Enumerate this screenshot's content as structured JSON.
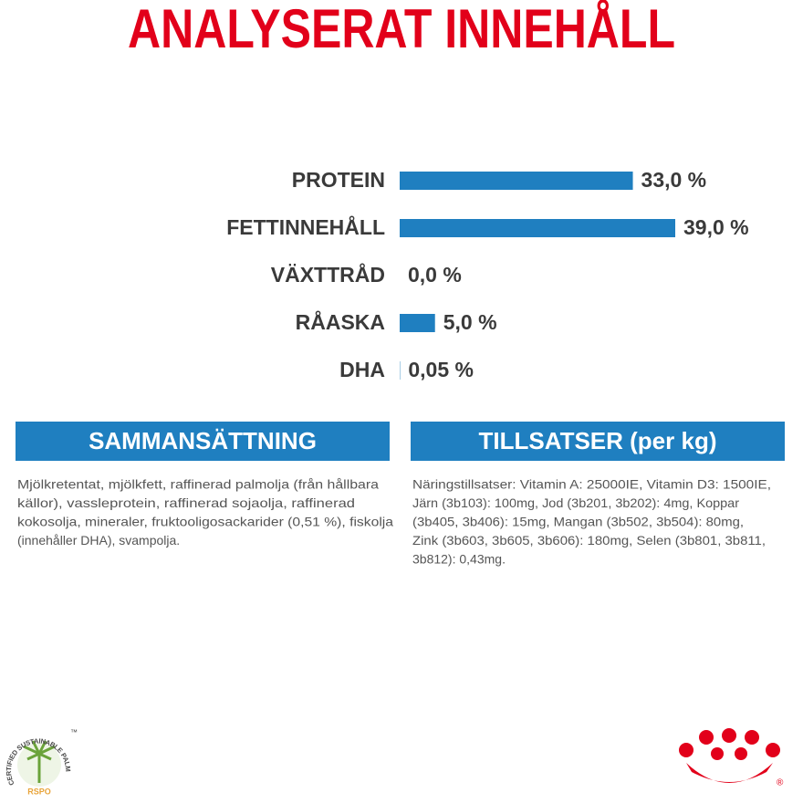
{
  "chart_data": {
    "type": "bar",
    "orientation": "horizontal",
    "title": "ANALYSERAT INNEHÅLL",
    "categories": [
      "PROTEIN",
      "FETTINNEHÅLL",
      "VÄXTTRÅD",
      "RÅASKA",
      "DHA"
    ],
    "values": [
      33.0,
      39.0,
      0.0,
      5.0,
      0.05
    ],
    "value_labels": [
      "33,0 %",
      "39,0 %",
      "0,0 %",
      "5,0 %",
      "0,05 %"
    ],
    "color": "#1f7fc0"
  },
  "sections": [
    {
      "title": "SAMMANSÄTTNING",
      "lines": [
        "Mjölkretentat, mjölkfett, raffinerad palmolja (från hållbara",
        "källor), vassleprotein, raffinerad sojaolja, raffinerad",
        "kokosolja, mineraler, fruktooligosackarider (0,51 %), fiskolja",
        "(innehåller DHA), svampolja."
      ]
    },
    {
      "title": "TILLSATSER (per kg)",
      "lines": [
        "Näringstillsatser: Vitamin A: 25000IE, Vitamin D3: 1500IE,",
        "Järn (3b103): 100mg, Jod (3b201, 3b202): 4mg, Koppar",
        "(3b405, 3b406): 15mg, Mangan (3b502, 3b504): 80mg,",
        "Zink (3b603, 3b605, 3b606): 180mg, Selen (3b801, 3b811,",
        "3b812): 0,43mg."
      ]
    }
  ],
  "logos": {
    "rspo_ring": "CERTIFIED SUSTAINABLE PALM OIL",
    "rspo_trademark": "™",
    "rspo_name": "RSPO",
    "brand_mark": "®"
  }
}
